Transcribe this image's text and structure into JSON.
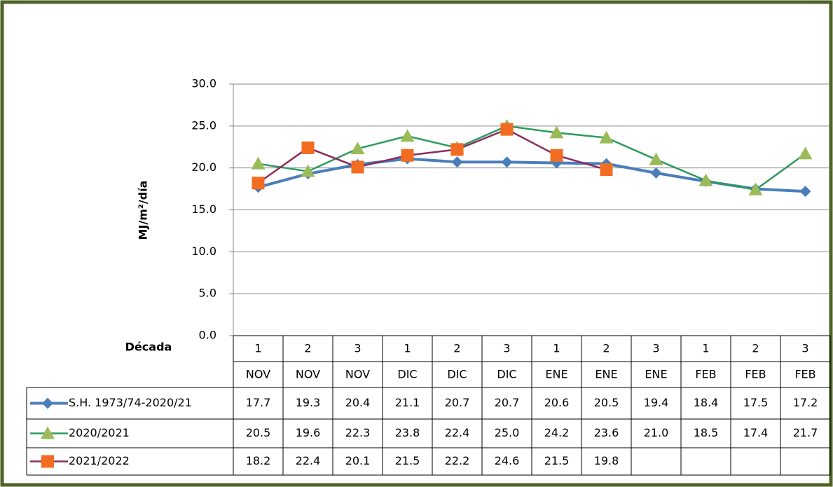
{
  "chart_data": {
    "type": "line",
    "y_label": "MJ/m²/día",
    "table_header": "Década",
    "categories": [
      "1",
      "2",
      "3",
      "1",
      "2",
      "3",
      "1",
      "2",
      "3",
      "1",
      "2",
      "3"
    ],
    "months": [
      "NOV",
      "NOV",
      "NOV",
      "DIC",
      "DIC",
      "DIC",
      "ENE",
      "ENE",
      "ENE",
      "FEB",
      "FEB",
      "FEB"
    ],
    "ylim": [
      0,
      30
    ],
    "yticks": [
      {
        "value": 0,
        "label": "0.0"
      },
      {
        "value": 5,
        "label": "5.0"
      },
      {
        "value": 10,
        "label": "10.0"
      },
      {
        "value": 15,
        "label": "15.0"
      },
      {
        "value": 20,
        "label": "20.0"
      },
      {
        "value": 25,
        "label": "25.0"
      },
      {
        "value": 30,
        "label": "30.0"
      }
    ],
    "grid": true,
    "series": [
      {
        "name": "S.H. 1973/74-2020/21",
        "color": "#4a7ebb",
        "marker": "diamond",
        "marker_color": "#4a7ebb",
        "values": [
          17.7,
          19.3,
          20.4,
          21.1,
          20.7,
          20.7,
          20.6,
          20.5,
          19.4,
          18.4,
          17.5,
          17.2
        ],
        "value_labels": [
          "17.7",
          "19.3",
          "20.4",
          "21.1",
          "20.7",
          "20.7",
          "20.6",
          "20.5",
          "19.4",
          "18.4",
          "17.5",
          "17.2"
        ]
      },
      {
        "name": "2020/2021",
        "color": "#2e9b5f",
        "marker": "triangle",
        "marker_color": "#9bbb59",
        "values": [
          20.5,
          19.6,
          22.3,
          23.8,
          22.4,
          25,
          24.2,
          23.6,
          21,
          18.5,
          17.4,
          21.7
        ],
        "value_labels": [
          "20.5",
          "19.6",
          "22.3",
          "23.8",
          "22.4",
          "25.0",
          "24.2",
          "23.6",
          "21.0",
          "18.5",
          "17.4",
          "21.7"
        ]
      },
      {
        "name": "2021/2022",
        "color": "#8b2a5e",
        "marker": "square",
        "marker_color": "#f26d21",
        "values": [
          18.2,
          22.4,
          20.1,
          21.5,
          22.2,
          24.6,
          21.5,
          19.8,
          null,
          null,
          null,
          null
        ],
        "value_labels": [
          "18.2",
          "22.4",
          "20.1",
          "21.5",
          "22.2",
          "24.6",
          "21.5",
          "19.8",
          null,
          null,
          null,
          null
        ]
      }
    ]
  }
}
